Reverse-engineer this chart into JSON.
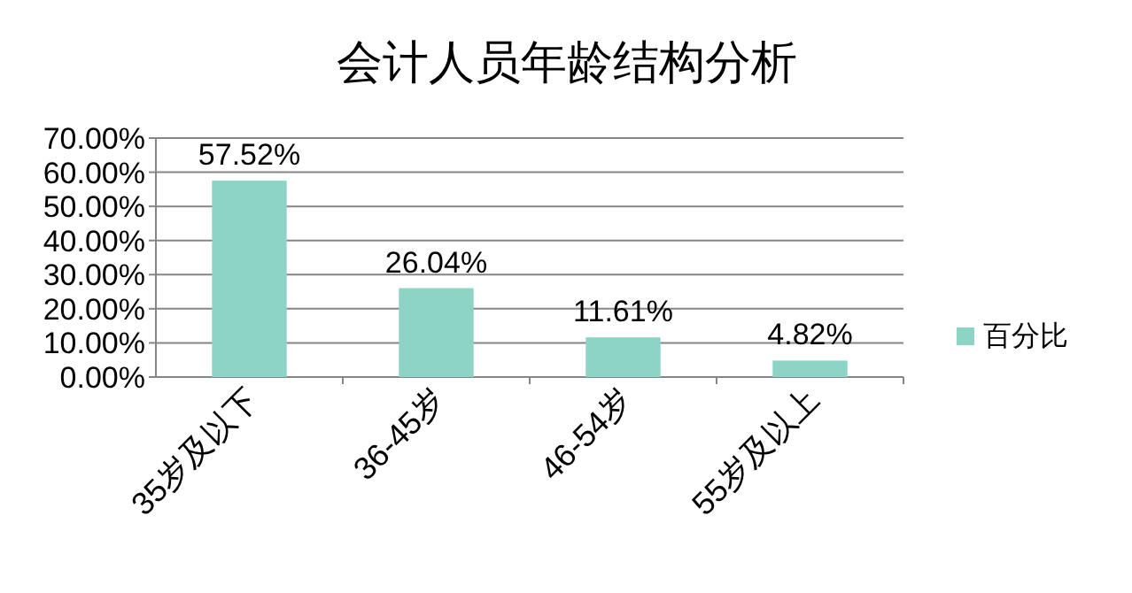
{
  "chart_data": {
    "type": "bar",
    "title": "会计人员年龄结构分析",
    "categories": [
      "35岁及以下",
      "36-45岁",
      "46-54岁",
      "55岁及以上"
    ],
    "series": [
      {
        "name": "百分比",
        "color": "#8dd4c6",
        "values": [
          57.52,
          26.04,
          11.61,
          4.82
        ],
        "value_labels": [
          "57.52%",
          "26.04%",
          "11.61%",
          "4.82%"
        ]
      }
    ],
    "ylim": [
      0,
      70
    ],
    "yticks": [
      {
        "value": 0,
        "label": "0.00%"
      },
      {
        "value": 10,
        "label": "10.00%"
      },
      {
        "value": 20,
        "label": "20.00%"
      },
      {
        "value": 30,
        "label": "30.00%"
      },
      {
        "value": 40,
        "label": "40.00%"
      },
      {
        "value": 50,
        "label": "50.00%"
      },
      {
        "value": 60,
        "label": "60.00%"
      },
      {
        "value": 70,
        "label": "70.00%"
      }
    ],
    "grid": "y",
    "legend": "right"
  }
}
